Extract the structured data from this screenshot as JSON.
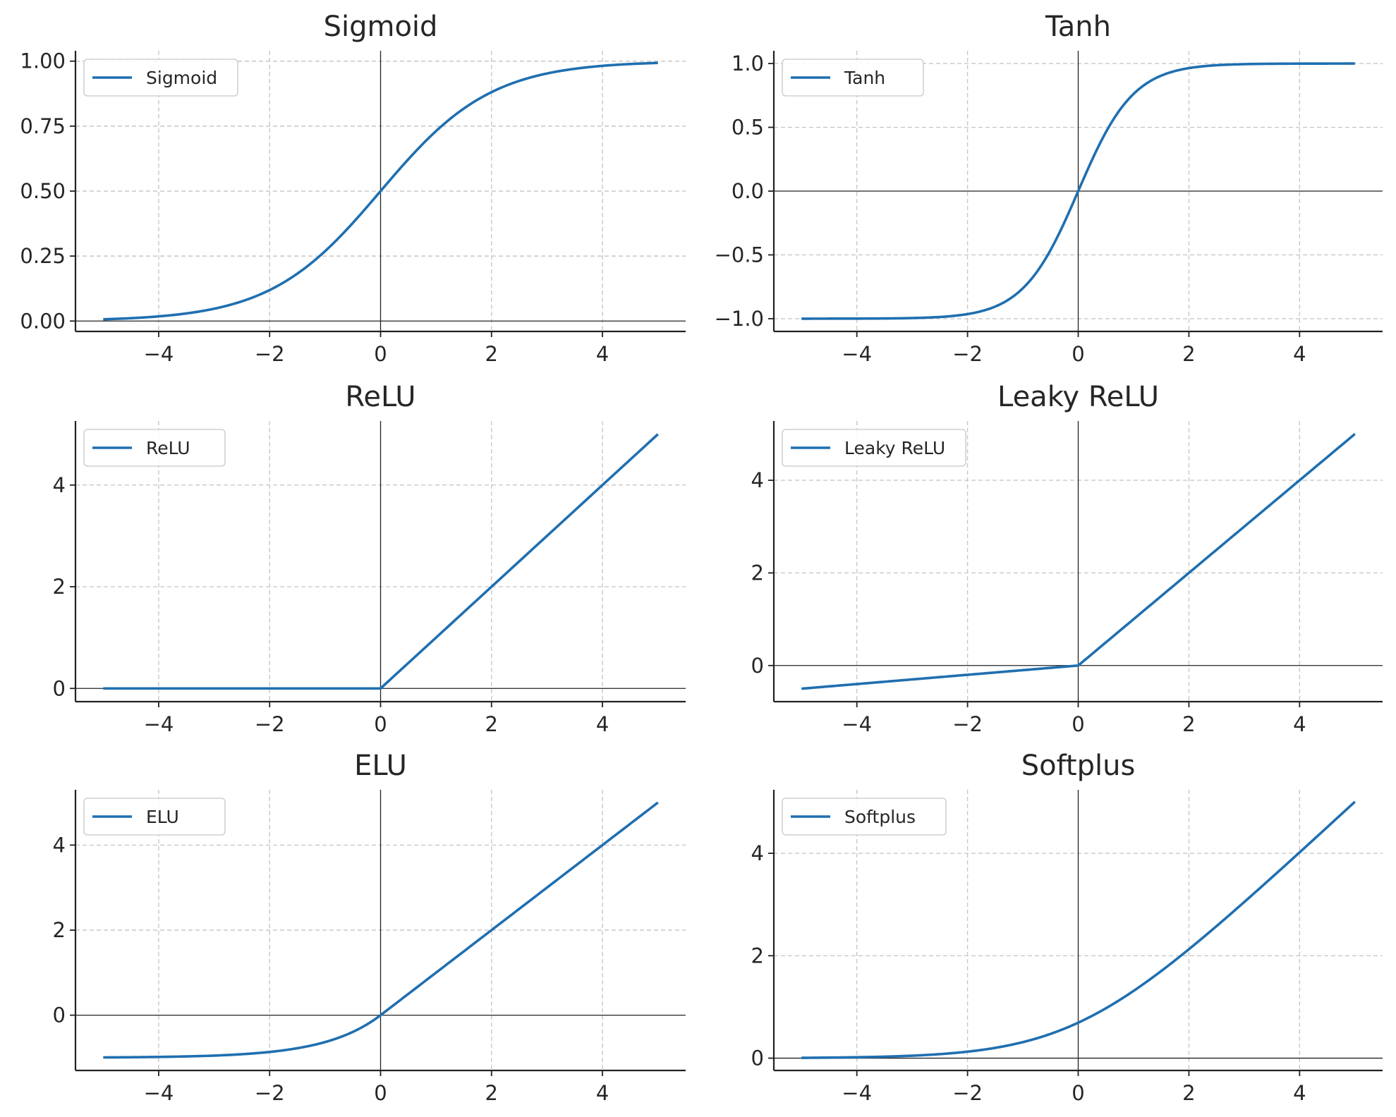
{
  "colors": {
    "line": "#1f6fb0",
    "grid": "#c8c8c8",
    "axis": "#222222",
    "zero_line": "#222222",
    "legend_border": "#d0d0d0"
  },
  "chart_data": [
    {
      "type": "line",
      "title": "Sigmoid",
      "function": "sigmoid",
      "xlim": [
        -5.5,
        5.5
      ],
      "ylim": [
        -0.04,
        1.04
      ],
      "xticks": [
        -4,
        -2,
        0,
        2,
        4
      ],
      "xtick_labels": [
        "−4",
        "−2",
        "0",
        "2",
        "4"
      ],
      "yticks": [
        0,
        0.25,
        0.5,
        0.75,
        1.0
      ],
      "ytick_labels": [
        "0.00",
        "0.25",
        "0.50",
        "0.75",
        "1.00"
      ],
      "grid": true,
      "legend_position": "top-left",
      "series": [
        {
          "name": "Sigmoid",
          "x": [
            -5,
            -4.5,
            -4,
            -3.5,
            -3,
            -2.5,
            -2,
            -1.5,
            -1,
            -0.5,
            0,
            0.5,
            1,
            1.5,
            2,
            2.5,
            3,
            3.5,
            4,
            4.5,
            5
          ],
          "y": [
            0.0067,
            0.011,
            0.018,
            0.0293,
            0.0474,
            0.0759,
            0.1192,
            0.1824,
            0.2689,
            0.3775,
            0.5,
            0.6225,
            0.7311,
            0.8176,
            0.8808,
            0.9241,
            0.9526,
            0.9707,
            0.982,
            0.989,
            0.9933
          ]
        }
      ]
    },
    {
      "type": "line",
      "title": "Tanh",
      "function": "tanh",
      "xlim": [
        -5.5,
        5.5
      ],
      "ylim": [
        -1.1,
        1.1
      ],
      "xticks": [
        -4,
        -2,
        0,
        2,
        4
      ],
      "xtick_labels": [
        "−4",
        "−2",
        "0",
        "2",
        "4"
      ],
      "yticks": [
        -1.0,
        -0.5,
        0,
        0.5,
        1.0
      ],
      "ytick_labels": [
        "−1.0",
        "−0.5",
        "0.0",
        "0.5",
        "1.0"
      ],
      "grid": true,
      "legend_position": "top-left",
      "series": [
        {
          "name": "Tanh",
          "x": [
            -5,
            -4.5,
            -4,
            -3.5,
            -3,
            -2.5,
            -2,
            -1.5,
            -1,
            -0.5,
            0,
            0.5,
            1,
            1.5,
            2,
            2.5,
            3,
            3.5,
            4,
            4.5,
            5
          ],
          "y": [
            -0.9999,
            -0.9998,
            -0.9993,
            -0.9982,
            -0.9951,
            -0.9866,
            -0.964,
            -0.9051,
            -0.7616,
            -0.4621,
            0,
            0.4621,
            0.7616,
            0.9051,
            0.964,
            0.9866,
            0.9951,
            0.9982,
            0.9993,
            0.9998,
            0.9999
          ]
        }
      ]
    },
    {
      "type": "line",
      "title": "ReLU",
      "function": "relu",
      "xlim": [
        -5.5,
        5.5
      ],
      "ylim": [
        -0.26,
        5.26
      ],
      "xticks": [
        -4,
        -2,
        0,
        2,
        4
      ],
      "xtick_labels": [
        "−4",
        "−2",
        "0",
        "2",
        "4"
      ],
      "yticks": [
        0,
        2,
        4
      ],
      "ytick_labels": [
        "0",
        "2",
        "4"
      ],
      "grid": true,
      "legend_position": "top-left",
      "series": [
        {
          "name": "ReLU",
          "x": [
            -5,
            -4,
            -3,
            -2,
            -1,
            0,
            1,
            2,
            3,
            4,
            5
          ],
          "y": [
            0,
            0,
            0,
            0,
            0,
            0,
            1,
            2,
            3,
            4,
            5
          ]
        }
      ]
    },
    {
      "type": "line",
      "title": "Leaky ReLU",
      "function": "leaky_relu",
      "xlim": [
        -5.5,
        5.5
      ],
      "ylim": [
        -0.78,
        5.28
      ],
      "xticks": [
        -4,
        -2,
        0,
        2,
        4
      ],
      "xtick_labels": [
        "−4",
        "−2",
        "0",
        "2",
        "4"
      ],
      "yticks": [
        0,
        2,
        4
      ],
      "ytick_labels": [
        "0",
        "2",
        "4"
      ],
      "grid": true,
      "legend_position": "top-left",
      "series": [
        {
          "name": "Leaky ReLU",
          "x": [
            -5,
            -4,
            -3,
            -2,
            -1,
            0,
            1,
            2,
            3,
            4,
            5
          ],
          "y": [
            -0.5,
            -0.4,
            -0.3,
            -0.2,
            -0.1,
            0,
            1,
            2,
            3,
            4,
            5
          ]
        }
      ]
    },
    {
      "type": "line",
      "title": "ELU",
      "function": "elu",
      "xlim": [
        -5.5,
        5.5
      ],
      "ylim": [
        -1.3,
        5.3
      ],
      "xticks": [
        -4,
        -2,
        0,
        2,
        4
      ],
      "xtick_labels": [
        "−4",
        "−2",
        "0",
        "2",
        "4"
      ],
      "yticks": [
        0,
        2,
        4
      ],
      "ytick_labels": [
        "0",
        "2",
        "4"
      ],
      "grid": true,
      "legend_position": "top-left",
      "series": [
        {
          "name": "ELU",
          "x": [
            -5,
            -4.5,
            -4,
            -3.5,
            -3,
            -2.5,
            -2,
            -1.5,
            -1,
            -0.5,
            0,
            1,
            2,
            3,
            4,
            5
          ],
          "y": [
            -0.9933,
            -0.9889,
            -0.9817,
            -0.9698,
            -0.9502,
            -0.9179,
            -0.8647,
            -0.7769,
            -0.6321,
            -0.3935,
            0,
            1,
            2,
            3,
            4,
            5
          ]
        }
      ]
    },
    {
      "type": "line",
      "title": "Softplus",
      "function": "softplus",
      "xlim": [
        -5.5,
        5.5
      ],
      "ylim": [
        -0.24,
        5.24
      ],
      "xticks": [
        -4,
        -2,
        0,
        2,
        4
      ],
      "xtick_labels": [
        "−4",
        "−2",
        "0",
        "2",
        "4"
      ],
      "yticks": [
        0,
        2,
        4
      ],
      "ytick_labels": [
        "0",
        "2",
        "4"
      ],
      "grid": true,
      "legend_position": "top-left",
      "series": [
        {
          "name": "Softplus",
          "x": [
            -5,
            -4.5,
            -4,
            -3.5,
            -3,
            -2.5,
            -2,
            -1.5,
            -1,
            -0.5,
            0,
            0.5,
            1,
            1.5,
            2,
            2.5,
            3,
            3.5,
            4,
            4.5,
            5
          ],
          "y": [
            0.0067,
            0.011,
            0.0181,
            0.0298,
            0.0486,
            0.0789,
            0.1269,
            0.2014,
            0.3133,
            0.4741,
            0.6931,
            0.9741,
            1.3133,
            1.7014,
            2.1269,
            2.5789,
            3.0486,
            3.5298,
            4.0181,
            4.511,
            5.0067
          ]
        }
      ]
    }
  ]
}
